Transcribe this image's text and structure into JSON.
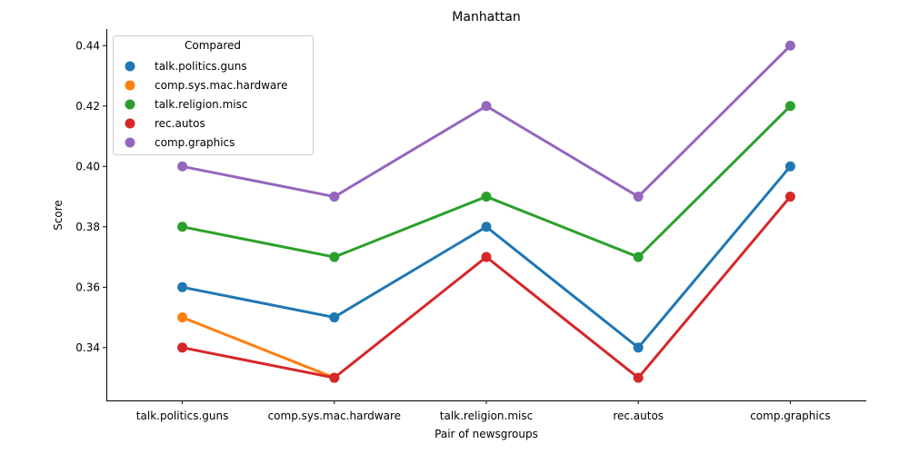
{
  "chart_data": {
    "type": "line",
    "title": "Manhattan",
    "xlabel": "Pair of newsgroups",
    "ylabel": "Score",
    "categories": [
      "talk.politics.guns",
      "comp.sys.mac.hardware",
      "talk.religion.misc",
      "rec.autos",
      "comp.graphics"
    ],
    "ylim": [
      0.3225,
      0.4455
    ],
    "yticks": [
      "0.34",
      "0.36",
      "0.38",
      "0.40",
      "0.42",
      "0.44"
    ],
    "ytick_values": [
      0.34,
      0.36,
      0.38,
      0.4,
      0.42,
      0.44
    ],
    "legend": {
      "title": "Compared",
      "placement": "top-left"
    },
    "grid": false,
    "series": [
      {
        "name": "talk.politics.guns",
        "color": "#1f77b4",
        "values": [
          0.36,
          0.35,
          0.38,
          0.34,
          0.4
        ]
      },
      {
        "name": "comp.sys.mac.hardware",
        "color": "#ff7f0e",
        "values": [
          0.35,
          0.33,
          null,
          null,
          null
        ]
      },
      {
        "name": "talk.religion.misc",
        "color": "#2ca02c",
        "values": [
          0.38,
          0.37,
          0.39,
          0.37,
          0.42
        ]
      },
      {
        "name": "rec.autos",
        "color": "#d62728",
        "values": [
          0.34,
          0.33,
          0.37,
          0.33,
          0.39
        ]
      },
      {
        "name": "comp.graphics",
        "color": "#9467bd",
        "values": [
          0.4,
          0.39,
          0.42,
          0.39,
          0.44
        ]
      }
    ]
  }
}
